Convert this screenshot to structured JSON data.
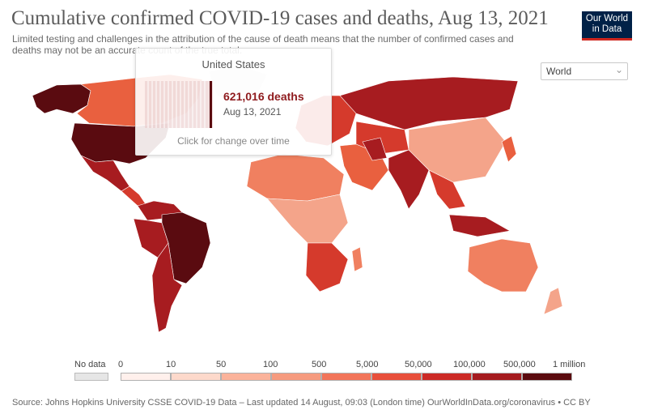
{
  "header": {
    "title": "Cumulative confirmed COVID-19 cases and deaths, Aug 13, 2021",
    "subtitle": "Limited testing and challenges in the attribution of the cause of death means that the number of confirmed cases and deaths may not be an accurate count of the true total."
  },
  "logo": {
    "line1": "Our World",
    "line2": "in Data",
    "bg": "#002147",
    "accent": "#ce261e"
  },
  "region_selector": {
    "value": "World",
    "icon": "chevron-down-icon"
  },
  "tooltip": {
    "country": "United States",
    "value": "621,016 deaths",
    "date": "Aug 13, 2021",
    "hint": "Click for change over time"
  },
  "legend": {
    "no_data_label": "No data",
    "no_data_color": "#e6e6e6",
    "tick_labels": [
      "0",
      "10",
      "50",
      "100",
      "500",
      "5,000",
      "50,000",
      "100,000",
      "500,000",
      "1 million"
    ],
    "bin_colors": [
      "#fff0ec",
      "#fdd9cb",
      "#fbb39b",
      "#f69b7f",
      "#f2755a",
      "#e84f3b",
      "#cc2a26",
      "#a51b1f",
      "#5b0b0f"
    ]
  },
  "source": "Source: Johns Hopkins University CSSE COVID-19 Data – Last updated 14 August, 09:03 (London time)   OurWorldInData.org/coronavirus • CC BY",
  "map_fills": {
    "land_light": "#f4a48a",
    "land_mid": "#f08060",
    "land_orange": "#e9603f",
    "land_red": "#d53a2c",
    "land_dark": "#a71c20",
    "land_darkest": "#5a0b10",
    "ocean": "#ffffff"
  }
}
